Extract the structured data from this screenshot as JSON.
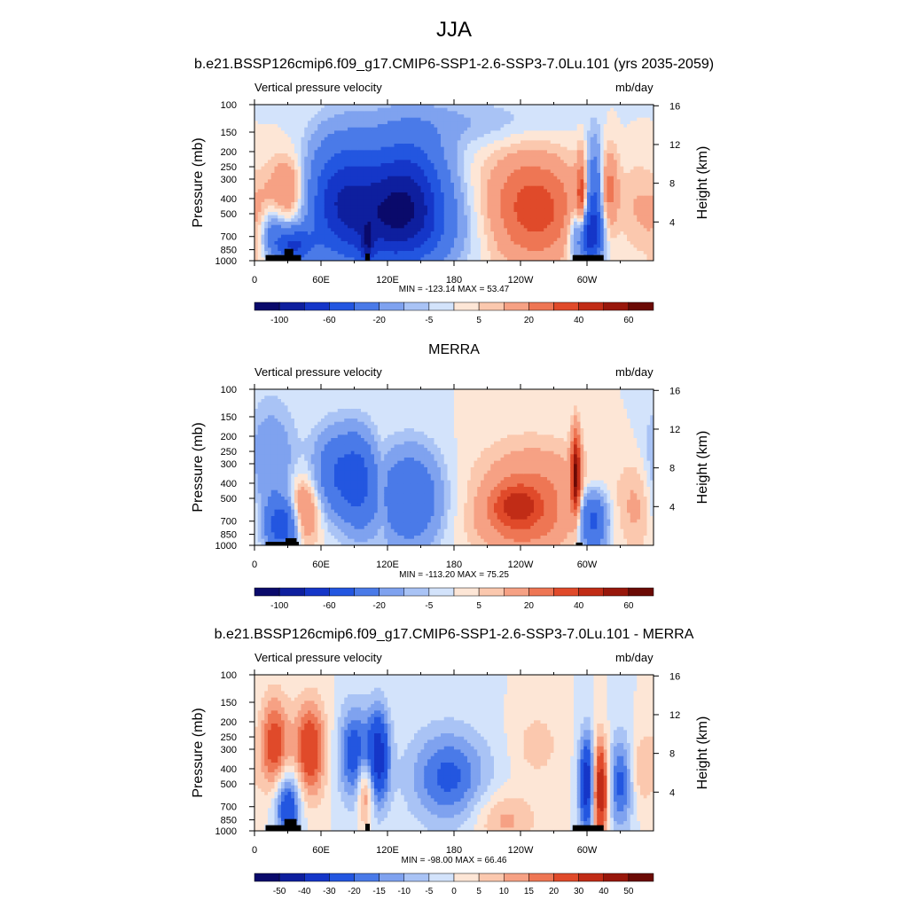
{
  "main_title": "JJA",
  "colors": {
    "land": "#000000",
    "case_levels": [
      "#0a0a6b",
      "#0e1f9e",
      "#1536c8",
      "#2356e0",
      "#4a7ae8",
      "#7fa2ef",
      "#a9c3f5",
      "#d3e3fb",
      "#fde6d6",
      "#fbc8ae",
      "#f6a184",
      "#ee7654",
      "#e04a2a",
      "#c12c16",
      "#98170b",
      "#6b0a05"
    ],
    "diff_levels": [
      "#0a0a6b",
      "#0e1f9e",
      "#1536c8",
      "#2356e0",
      "#4a7ae8",
      "#7fa2ef",
      "#a9c3f5",
      "#d3e3fb",
      "#fde6d6",
      "#fbc8ae",
      "#f6a184",
      "#ee7654",
      "#e04a2a",
      "#c12c16",
      "#98170b",
      "#6b0a05"
    ]
  },
  "chart_data": [
    {
      "type": "heatmap",
      "title": "b.e21.BSSP126cmip6.f09_g17.CMIP6-SSP1-2.6-SSP3-7.0Lu.101 (yrs 2035-2059)",
      "left_label": "Vertical pressure velocity",
      "right_label": "mb/day",
      "ylabel": "Pressure (mb)",
      "y2label": "Height (km)",
      "yticks": [
        "100",
        "150",
        "200",
        "250",
        "300",
        "400",
        "500",
        "700",
        "850",
        "1000"
      ],
      "y2ticks": [
        "16",
        "12",
        "8",
        "4"
      ],
      "xticks": [
        "0",
        "60E",
        "120E",
        "180",
        "120W",
        "60W"
      ],
      "stats": "MIN = -123.14  MAX =  53.47",
      "colorbar_labels": [
        "-100",
        "-60",
        "-20",
        "-5",
        "5",
        "20",
        "40",
        "60"
      ],
      "min": -123.14,
      "max": 53.47,
      "features": [
        {
          "lon": 30,
          "p": 350,
          "amp": 24,
          "wlon": 12,
          "wlev": 0.35
        },
        {
          "lon": 5,
          "p": 600,
          "amp": 14,
          "wlon": 8,
          "wlev": 0.45
        },
        {
          "lon": 35,
          "p": 800,
          "amp": -60,
          "wlon": 12,
          "wlev": 0.18
        },
        {
          "lon": 15,
          "p": 650,
          "amp": -25,
          "wlon": 8,
          "wlev": 0.25
        },
        {
          "lon": 75,
          "p": 400,
          "amp": -60,
          "wlon": 20,
          "wlev": 0.6
        },
        {
          "lon": 115,
          "p": 420,
          "amp": -55,
          "wlon": 25,
          "wlev": 0.6
        },
        {
          "lon": 145,
          "p": 380,
          "amp": -55,
          "wlon": 22,
          "wlev": 0.6
        },
        {
          "lon": 102,
          "p": 800,
          "amp": -40,
          "wlon": 4,
          "wlev": 0.2
        },
        {
          "lon": 130,
          "p": 650,
          "amp": -30,
          "wlon": 40,
          "wlev": 0.4
        },
        {
          "lon": 245,
          "p": 450,
          "amp": 28,
          "wlon": 28,
          "wlev": 0.6
        },
        {
          "lon": 270,
          "p": 500,
          "amp": 12,
          "wlon": 25,
          "wlev": 0.5
        },
        {
          "lon": 300,
          "p": 700,
          "amp": -65,
          "wlon": 9,
          "wlev": 0.3
        },
        {
          "lon": 295,
          "p": 450,
          "amp": 35,
          "wlon": 3,
          "wlev": 0.5
        },
        {
          "lon": 307,
          "p": 400,
          "amp": -45,
          "wlon": 5,
          "wlev": 0.55
        },
        {
          "lon": 320,
          "p": 350,
          "amp": 22,
          "wlon": 6,
          "wlev": 0.45
        },
        {
          "lon": 345,
          "p": 450,
          "amp": 10,
          "wlon": 10,
          "wlev": 0.5
        },
        {
          "lon": 190,
          "p": 130,
          "amp": -10,
          "wlon": 60,
          "wlev": 0.25
        }
      ],
      "land": [
        {
          "lon0": 10,
          "lon1": 42,
          "p": 920
        },
        {
          "lon0": 27,
          "lon1": 35,
          "p": 840
        },
        {
          "lon0": 100,
          "lon1": 104,
          "p": 900
        },
        {
          "lon0": 287,
          "lon1": 315,
          "p": 920
        }
      ]
    },
    {
      "type": "heatmap",
      "title": "MERRA",
      "left_label": "Vertical pressure velocity",
      "right_label": "mb/day",
      "ylabel": "Pressure (mb)",
      "y2label": "Height (km)",
      "yticks": [
        "100",
        "150",
        "200",
        "250",
        "300",
        "400",
        "500",
        "700",
        "850",
        "1000"
      ],
      "y2ticks": [
        "16",
        "12",
        "8",
        "4"
      ],
      "xticks": [
        "0",
        "60E",
        "120E",
        "180",
        "120W",
        "60W"
      ],
      "stats": "MIN = -113.20  MAX =  75.25",
      "colorbar_labels": [
        "-100",
        "-60",
        "-20",
        "-5",
        "5",
        "20",
        "40",
        "60"
      ],
      "min": -113.2,
      "max": 75.25,
      "features": [
        {
          "lon": 15,
          "p": 300,
          "amp": -20,
          "wlon": 15,
          "wlev": 0.6
        },
        {
          "lon": 45,
          "p": 600,
          "amp": 28,
          "wlon": 10,
          "wlev": 0.35
        },
        {
          "lon": 25,
          "p": 750,
          "amp": -55,
          "wlon": 10,
          "wlev": 0.25
        },
        {
          "lon": 75,
          "p": 350,
          "amp": -40,
          "wlon": 15,
          "wlev": 0.45
        },
        {
          "lon": 95,
          "p": 400,
          "amp": -35,
          "wlon": 10,
          "wlev": 0.5
        },
        {
          "lon": 140,
          "p": 500,
          "amp": -40,
          "wlon": 20,
          "wlev": 0.5
        },
        {
          "lon": 115,
          "p": 500,
          "amp": 8,
          "wlon": 3,
          "wlev": 0.5
        },
        {
          "lon": 250,
          "p": 450,
          "amp": 22,
          "wlon": 35,
          "wlev": 0.5
        },
        {
          "lon": 235,
          "p": 550,
          "amp": 25,
          "wlon": 15,
          "wlev": 0.2
        },
        {
          "lon": 240,
          "p": 800,
          "amp": 14,
          "wlon": 30,
          "wlev": 0.3
        },
        {
          "lon": 290,
          "p": 350,
          "amp": 55,
          "wlon": 3,
          "wlev": 0.45
        },
        {
          "lon": 305,
          "p": 700,
          "amp": -50,
          "wlon": 9,
          "wlev": 0.3
        },
        {
          "lon": 345,
          "p": 550,
          "amp": 12,
          "wlon": 12,
          "wlev": 0.5
        }
      ],
      "land": [
        {
          "lon0": 10,
          "lon1": 40,
          "p": 950
        },
        {
          "lon0": 28,
          "lon1": 38,
          "p": 900
        },
        {
          "lon0": 290,
          "lon1": 296,
          "p": 960
        }
      ]
    },
    {
      "type": "heatmap",
      "title": "b.e21.BSSP126cmip6.f09_g17.CMIP6-SSP1-2.6-SSP3-7.0Lu.101 - MERRA",
      "left_label": "Vertical pressure velocity",
      "right_label": "mb/day",
      "ylabel": "Pressure (mb)",
      "y2label": "Height (km)",
      "yticks": [
        "100",
        "150",
        "200",
        "250",
        "300",
        "400",
        "500",
        "700",
        "850",
        "1000"
      ],
      "y2ticks": [
        "16",
        "12",
        "8",
        "4"
      ],
      "xticks": [
        "0",
        "60E",
        "120E",
        "180",
        "120W",
        "60W"
      ],
      "stats": "MIN = -98.00  MAX =  66.46",
      "colorbar_labels": [
        "-50",
        "-40",
        "-30",
        "-20",
        "-15",
        "-10",
        "-5",
        "0",
        "5",
        "10",
        "15",
        "20",
        "30",
        "40",
        "50"
      ],
      "min": -98.0,
      "max": 66.46,
      "features": [
        {
          "lon": 18,
          "p": 280,
          "amp": 25,
          "wlon": 9,
          "wlev": 0.5
        },
        {
          "lon": 50,
          "p": 300,
          "amp": 28,
          "wlon": 10,
          "wlev": 0.5
        },
        {
          "lon": 30,
          "p": 700,
          "amp": -30,
          "wlon": 8,
          "wlev": 0.35
        },
        {
          "lon": 90,
          "p": 320,
          "amp": -25,
          "wlon": 10,
          "wlev": 0.5
        },
        {
          "lon": 112,
          "p": 330,
          "amp": -35,
          "wlon": 7,
          "wlev": 0.5
        },
        {
          "lon": 100,
          "p": 550,
          "amp": 22,
          "wlon": 5,
          "wlev": 0.35
        },
        {
          "lon": 175,
          "p": 450,
          "amp": -22,
          "wlon": 25,
          "wlev": 0.5
        },
        {
          "lon": 255,
          "p": 280,
          "amp": 8,
          "wlon": 15,
          "wlev": 0.35
        },
        {
          "lon": 300,
          "p": 500,
          "amp": -40,
          "wlon": 5,
          "wlev": 0.5
        },
        {
          "lon": 312,
          "p": 550,
          "amp": 42,
          "wlon": 5,
          "wlev": 0.5
        },
        {
          "lon": 330,
          "p": 500,
          "amp": -22,
          "wlon": 8,
          "wlev": 0.5
        },
        {
          "lon": 350,
          "p": 400,
          "amp": 10,
          "wlon": 8,
          "wlev": 0.4
        },
        {
          "lon": 225,
          "p": 850,
          "amp": 12,
          "wlon": 20,
          "wlev": 0.3
        }
      ],
      "land": [
        {
          "lon0": 10,
          "lon1": 42,
          "p": 920
        },
        {
          "lon0": 27,
          "lon1": 38,
          "p": 840
        },
        {
          "lon0": 100,
          "lon1": 104,
          "p": 900
        },
        {
          "lon0": 287,
          "lon1": 315,
          "p": 920
        }
      ]
    }
  ]
}
